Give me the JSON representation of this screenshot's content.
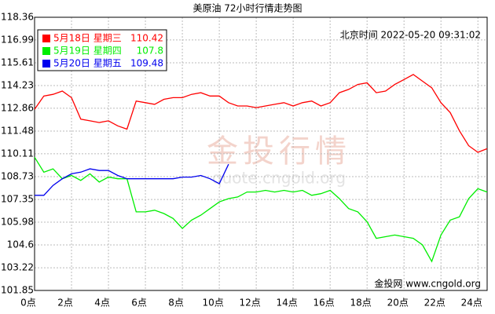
{
  "chart_data": {
    "type": "line",
    "title": "美原油 72小时行情走势图",
    "timestamp": "北京时间 2022-05-20 09:31:02",
    "watermark": "金投行情",
    "watermark_url": "quote.cngold.org",
    "source": "金投网 www.cngold.org",
    "x": [
      0,
      0.5,
      1,
      1.5,
      2,
      2.5,
      3,
      3.5,
      4,
      4.5,
      5,
      5.5,
      6,
      6.5,
      7,
      7.5,
      8,
      8.5,
      9,
      9.5,
      10,
      10.5,
      11,
      11.5,
      12,
      12.5,
      13,
      13.5,
      14,
      14.5,
      15,
      15.5,
      16,
      16.5,
      17,
      17.5,
      18,
      18.5,
      19,
      19.5,
      20,
      20.5,
      21,
      21.5,
      22,
      22.5,
      23,
      23.5,
      24,
      24.5
    ],
    "series": [
      {
        "name": "5月18日 星期三",
        "latest": 110.42,
        "color": "#ff0000",
        "values": [
          112.8,
          113.6,
          113.7,
          113.9,
          113.5,
          112.2,
          112.1,
          112.0,
          112.1,
          111.8,
          111.6,
          113.3,
          113.2,
          113.1,
          113.4,
          113.5,
          113.5,
          113.7,
          113.8,
          113.6,
          113.6,
          113.2,
          113.0,
          113.0,
          112.9,
          113.0,
          113.1,
          113.2,
          113.0,
          113.2,
          113.3,
          113.0,
          113.2,
          113.8,
          114.0,
          114.3,
          114.4,
          113.8,
          113.9,
          114.3,
          114.6,
          114.9,
          114.5,
          114.1,
          113.2,
          112.6,
          111.5,
          110.6,
          110.2,
          110.42
        ]
      },
      {
        "name": "5月19日 星期四",
        "latest": 107.8,
        "color": "#00ee00",
        "values": [
          109.9,
          109.0,
          109.2,
          108.6,
          108.8,
          108.5,
          108.9,
          108.4,
          108.7,
          108.6,
          108.6,
          106.6,
          106.6,
          106.7,
          106.5,
          106.2,
          105.6,
          106.1,
          106.4,
          106.8,
          107.2,
          107.4,
          107.5,
          107.8,
          107.8,
          107.9,
          107.8,
          107.9,
          107.8,
          107.9,
          107.6,
          107.7,
          107.9,
          107.4,
          106.8,
          106.6,
          106.0,
          105.0,
          105.1,
          105.2,
          105.1,
          105.0,
          104.6,
          103.6,
          105.2,
          106.1,
          106.3,
          107.4,
          108.0,
          107.8
        ]
      },
      {
        "name": "5月20日 星期五",
        "latest": 109.48,
        "color": "#0000ee",
        "values": [
          107.6,
          107.6,
          108.2,
          108.6,
          108.9,
          109.0,
          109.2,
          109.1,
          109.1,
          108.8,
          108.6,
          108.6,
          108.6,
          108.6,
          108.6,
          108.6,
          108.7,
          108.7,
          108.8,
          108.6,
          108.3,
          109.48,
          null,
          null,
          null,
          null,
          null,
          null,
          null,
          null,
          null,
          null,
          null,
          null,
          null,
          null,
          null,
          null,
          null,
          null,
          null,
          null,
          null,
          null,
          null,
          null,
          null,
          null,
          null,
          null
        ]
      }
    ],
    "xlim": [
      0,
      24.5
    ],
    "xticks": [
      {
        "value": 0,
        "label": "0点"
      },
      {
        "value": 2,
        "label": "2点"
      },
      {
        "value": 4,
        "label": "4点"
      },
      {
        "value": 6,
        "label": "6点"
      },
      {
        "value": 8,
        "label": "8点"
      },
      {
        "value": 10,
        "label": "10点"
      },
      {
        "value": 12,
        "label": "12点"
      },
      {
        "value": 14,
        "label": "14点"
      },
      {
        "value": 16,
        "label": "16点"
      },
      {
        "value": 18,
        "label": "18点"
      },
      {
        "value": 20,
        "label": "20点"
      },
      {
        "value": 22,
        "label": "22点"
      },
      {
        "value": 24,
        "label": "24点"
      }
    ],
    "ylim": [
      101.85,
      118.36
    ],
    "yticks": [
      101.85,
      103.22,
      104.6,
      105.98,
      107.35,
      108.73,
      110.11,
      111.48,
      112.86,
      114.23,
      115.61,
      116.99,
      118.36
    ],
    "grid": true
  }
}
